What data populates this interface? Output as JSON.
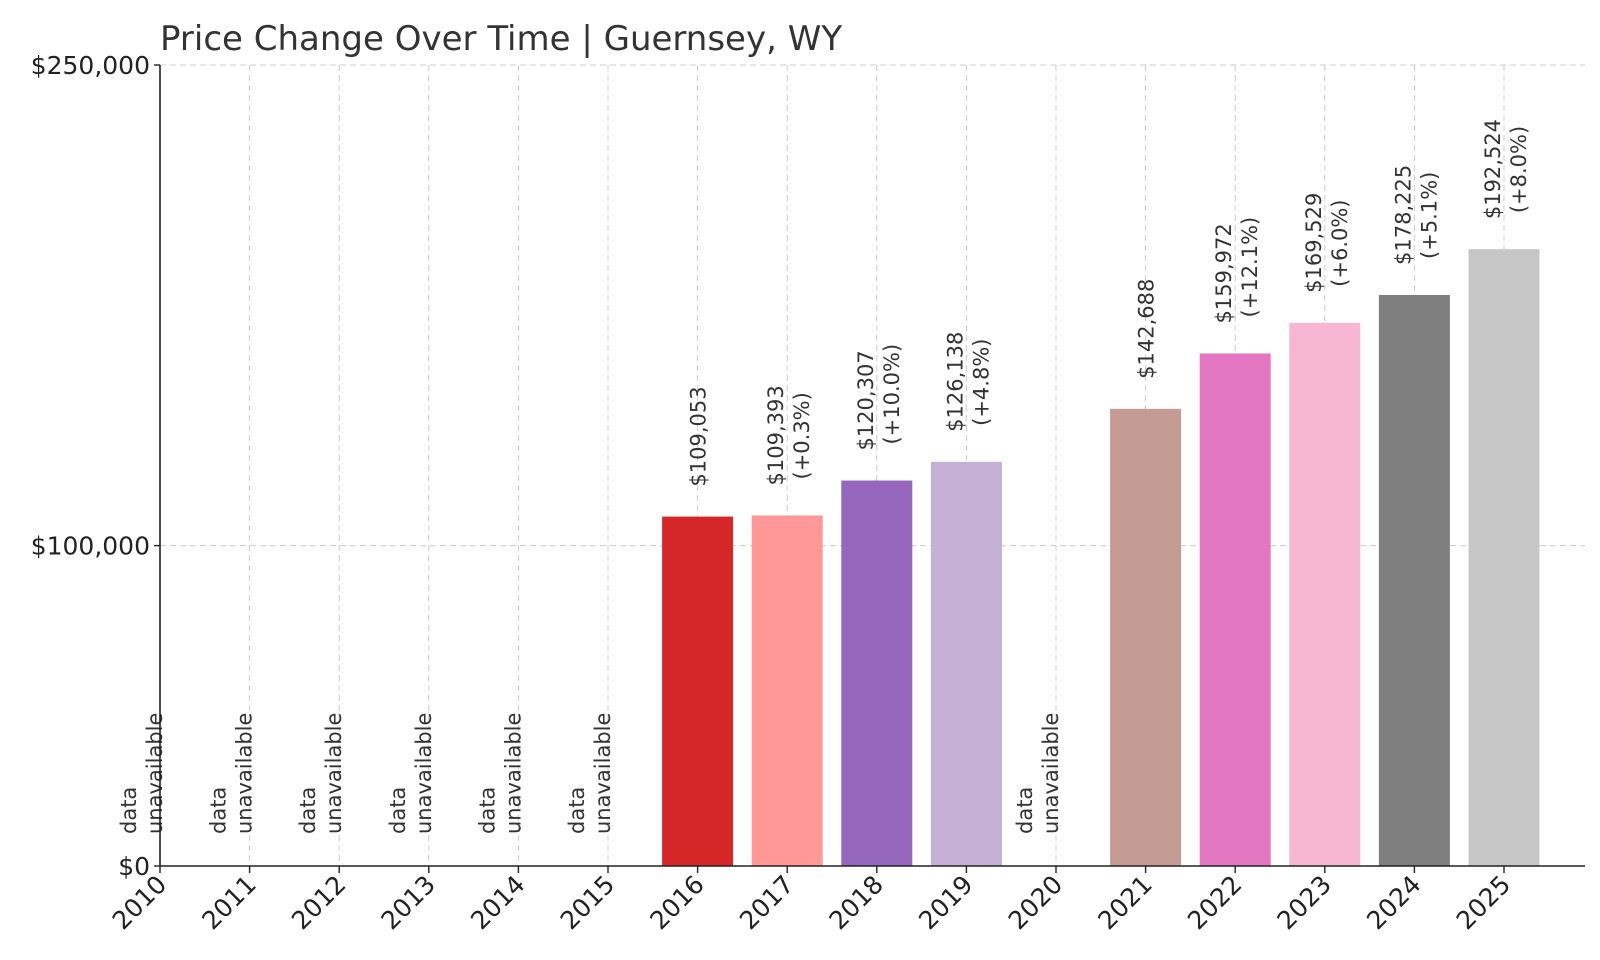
{
  "chart_data": {
    "type": "bar",
    "title": "Price Change Over Time | Guernsey, WY",
    "xlabel": "",
    "ylabel": "",
    "ylim": [
      0,
      250000
    ],
    "yticks": [
      {
        "value": 0,
        "label": "$0"
      },
      {
        "value": 100000,
        "label": "$100,000"
      },
      {
        "value": 250000,
        "label": "$250,000"
      }
    ],
    "grid": true,
    "unavailable_label": [
      "data",
      "unavailable"
    ],
    "categories": [
      "2010",
      "2011",
      "2012",
      "2013",
      "2014",
      "2015",
      "2016",
      "2017",
      "2018",
      "2019",
      "2020",
      "2021",
      "2022",
      "2023",
      "2024",
      "2025"
    ],
    "values": [
      null,
      null,
      null,
      null,
      null,
      null,
      109053,
      109393,
      120307,
      126138,
      null,
      142688,
      159972,
      169529,
      178225,
      192524
    ],
    "value_labels": [
      null,
      null,
      null,
      null,
      null,
      null,
      "$109,053",
      "$109,393",
      "$120,307",
      "$126,138",
      null,
      "$142,688",
      "$159,972",
      "$169,529",
      "$178,225",
      "$192,524"
    ],
    "change_labels": [
      null,
      null,
      null,
      null,
      null,
      null,
      null,
      "(+0.3%)",
      "(+10.0%)",
      "(+4.8%)",
      null,
      null,
      "(+12.1%)",
      "(+6.0%)",
      "(+5.1%)",
      "(+8.0%)"
    ],
    "colors": [
      "#d62728",
      "#d62728",
      "#d62728",
      "#d62728",
      "#d62728",
      "#d62728",
      "#d62728",
      "#ff9896",
      "#9467bd",
      "#c5b0d5",
      "#8c564b",
      "#c49c94",
      "#e377c2",
      "#f7b6d2",
      "#7f7f7f",
      "#c7c7c7"
    ]
  }
}
